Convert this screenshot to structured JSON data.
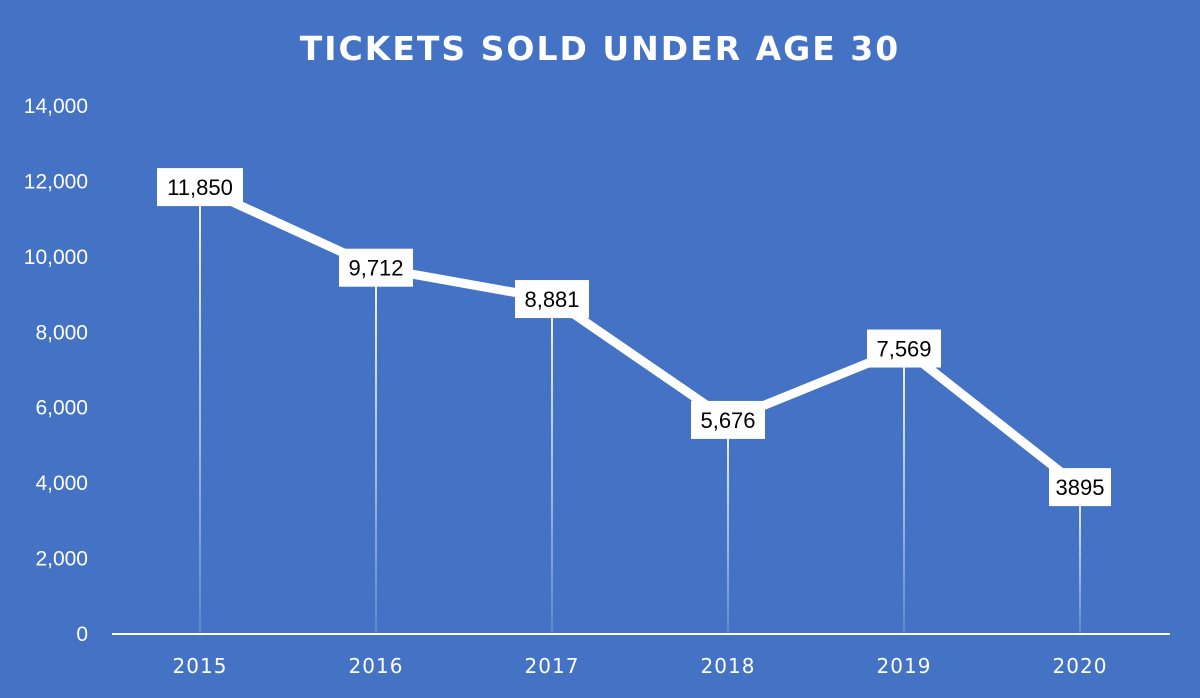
{
  "chart_data": {
    "type": "line",
    "title": "TICKETS SOLD UNDER AGE 30",
    "xlabel": "",
    "ylabel": "",
    "categories": [
      "2015",
      "2016",
      "2017",
      "2018",
      "2019",
      "2020"
    ],
    "series": [
      {
        "values": [
          11850,
          9712,
          8881,
          5676,
          7569,
          3895
        ],
        "labels": [
          "11,850",
          "9,712",
          "8,881",
          "5,676",
          "7,569",
          "3895"
        ]
      }
    ],
    "ylim": [
      0,
      14000
    ],
    "yticks": [
      "0",
      "2,000",
      "4,000",
      "6,000",
      "8,000",
      "10,000",
      "12,000",
      "14,000"
    ],
    "ytick_values": [
      0,
      2000,
      4000,
      6000,
      8000,
      10000,
      12000,
      14000
    ],
    "grid": false,
    "legend": "none",
    "drop_lines": true,
    "colors": {
      "background": "#4472c4",
      "line": "#ffffff",
      "axis": "#ffffff",
      "label_box": "#ffffff",
      "label_text": "#000000"
    }
  }
}
